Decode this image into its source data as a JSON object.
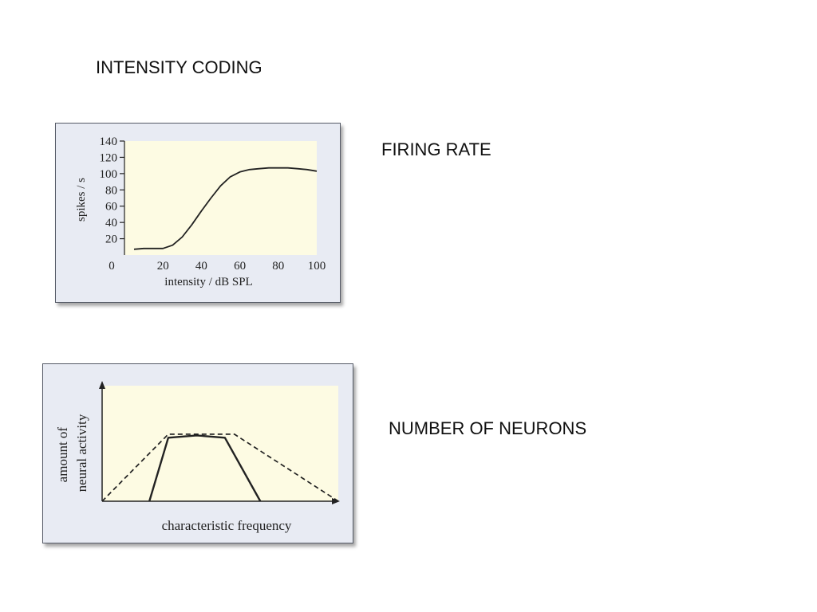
{
  "slide": {
    "title": "INTENSITY CODING",
    "label_firing_rate": "FIRING RATE",
    "label_number_of_neurons": "NUMBER OF NEURONS"
  },
  "colors": {
    "plot_background": "#fdfbe3",
    "panel_background": "#e8ebf3",
    "curve": "#222222"
  },
  "chart_data": [
    {
      "type": "line",
      "title": "",
      "xlabel": "intensity / dB SPL",
      "ylabel": "spikes / s",
      "xlim": [
        0,
        100
      ],
      "ylim": [
        0,
        140
      ],
      "x_ticks": [
        0,
        20,
        40,
        60,
        80,
        100
      ],
      "y_ticks": [
        20,
        40,
        60,
        80,
        100,
        120,
        140
      ],
      "grid": false,
      "series": [
        {
          "x": [
            5,
            10,
            15,
            20,
            25,
            30,
            35,
            40,
            45,
            50,
            55,
            60,
            65,
            70,
            75,
            80,
            85,
            90,
            95,
            100
          ],
          "y": [
            7,
            8,
            8,
            8,
            12,
            22,
            37,
            54,
            70,
            85,
            96,
            102,
            105,
            106,
            107,
            107,
            107,
            106,
            105,
            103
          ]
        }
      ]
    },
    {
      "type": "line",
      "title": "",
      "xlabel": "characteristic frequency",
      "ylabel": [
        "amount of",
        "neural activity"
      ],
      "xlim": [
        0,
        100
      ],
      "ylim": [
        0,
        100
      ],
      "grid": false,
      "series": [
        {
          "style": "solid",
          "x": [
            20,
            28,
            40,
            52,
            67
          ],
          "y": [
            0,
            55,
            57,
            55,
            0
          ]
        },
        {
          "style": "dashed",
          "x": [
            0,
            28,
            56,
            100
          ],
          "y": [
            0,
            58,
            58,
            0
          ]
        }
      ]
    }
  ]
}
